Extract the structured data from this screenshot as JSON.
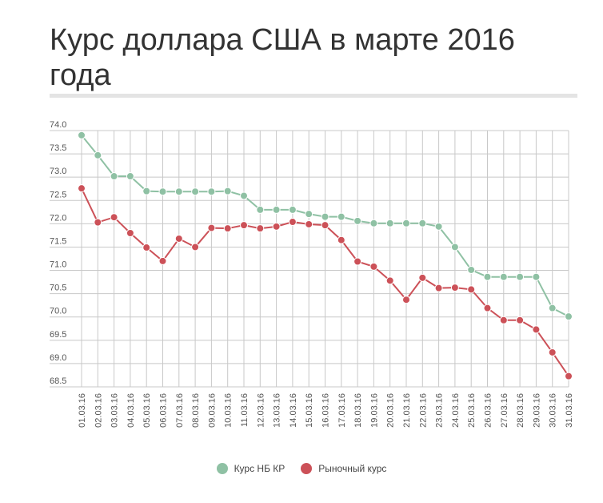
{
  "chart_data": {
    "type": "line",
    "title": "Курс доллара США в марте 2016 года",
    "xlabel": "",
    "ylabel": "",
    "categories": [
      "01.03.16",
      "02.03.16",
      "03.03.16",
      "04.03.16",
      "05.03.16",
      "06.03.16",
      "07.03.16",
      "08.03.16",
      "09.03.16",
      "10.03.16",
      "11.03.16",
      "12.03.16",
      "13.03.16",
      "14.03.16",
      "15.03.16",
      "16.03.16",
      "17.03.16",
      "18.03.16",
      "19.03.16",
      "20.03.16",
      "21.03.16",
      "22.03.16",
      "23.03.16",
      "24.03.16",
      "25.03.16",
      "26.03.16",
      "27.03.16",
      "28.03.16",
      "29.03.16",
      "30.03.16",
      "31.03.16"
    ],
    "yticks": [
      "74.0",
      "73.5",
      "73.0",
      "72.5",
      "72.0",
      "71.5",
      "71.0",
      "70.5",
      "70.0",
      "69.5",
      "69.0",
      "68.5"
    ],
    "ylim": [
      68.5,
      74.0
    ],
    "grid": true,
    "legend_position": "bottom",
    "series": [
      {
        "name": "Курс НБ КР",
        "color": "#8fc1a4",
        "values": [
          73.9,
          73.47,
          73.02,
          73.02,
          72.7,
          72.69,
          72.69,
          72.69,
          72.69,
          72.7,
          72.6,
          72.3,
          72.3,
          72.3,
          72.21,
          72.15,
          72.15,
          72.06,
          72.01,
          72.01,
          72.01,
          72.01,
          71.94,
          71.5,
          71.01,
          70.86,
          70.86,
          70.86,
          70.86,
          70.19,
          70.01
        ]
      },
      {
        "name": "Рыночный курс",
        "color": "#cc5158",
        "values": [
          72.76,
          72.03,
          72.14,
          71.8,
          71.49,
          71.2,
          71.68,
          71.5,
          71.91,
          71.9,
          71.97,
          71.9,
          71.94,
          72.04,
          71.99,
          71.97,
          71.65,
          71.19,
          71.08,
          70.78,
          70.37,
          70.84,
          70.62,
          70.63,
          70.59,
          70.19,
          69.93,
          69.93,
          69.73,
          69.24,
          68.73
        ]
      }
    ]
  }
}
